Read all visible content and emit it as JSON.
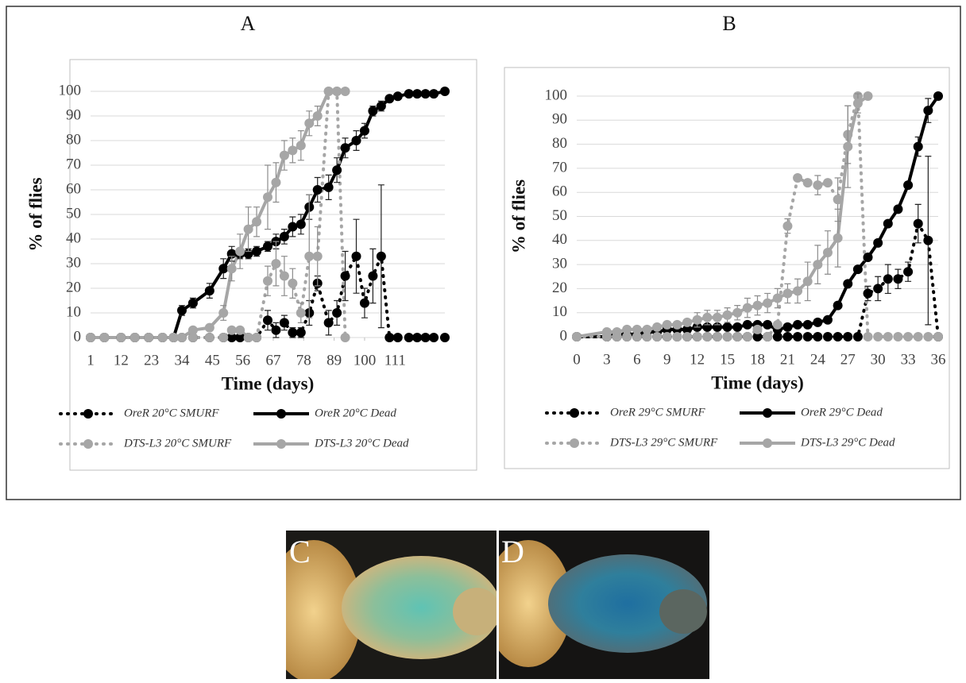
{
  "chart_data": [
    {
      "type": "line",
      "title": "A",
      "x_label": "Time (days)",
      "y_label": "% of flies",
      "x": [
        1,
        6,
        12,
        17,
        22,
        27,
        31,
        34,
        38,
        44,
        49,
        52,
        55,
        58,
        61,
        65,
        68,
        71,
        74,
        77,
        80,
        83,
        87,
        90,
        93,
        97,
        100,
        103,
        106,
        109,
        112,
        116,
        119,
        122,
        125,
        129
      ],
      "xlim": [
        1,
        129
      ],
      "xticks": [
        1,
        12,
        23,
        34,
        45,
        56,
        67,
        78,
        89,
        100,
        111
      ],
      "ylim": [
        0,
        100
      ],
      "yticks": [
        0,
        10,
        20,
        30,
        40,
        50,
        60,
        70,
        80,
        90,
        100
      ],
      "grid": true,
      "series": [
        {
          "name": "OreR 20°C SMURF",
          "color": "#000000",
          "dash": "dotted",
          "values": [
            0,
            0,
            0,
            0,
            0,
            0,
            0,
            0,
            0,
            0,
            0,
            0,
            0,
            0,
            0,
            7,
            3,
            6,
            2,
            2,
            10,
            22,
            6,
            10,
            25,
            33,
            14,
            25,
            33,
            0,
            0,
            0,
            0,
            0,
            0,
            0
          ],
          "errors": [
            null,
            null,
            null,
            null,
            null,
            null,
            null,
            null,
            null,
            null,
            null,
            null,
            null,
            null,
            null,
            4,
            3,
            3,
            2,
            2,
            5,
            3,
            5,
            5,
            10,
            15,
            6,
            11,
            29,
            null,
            null,
            null,
            null,
            null,
            null,
            null
          ]
        },
        {
          "name": "OreR 20°C Dead",
          "color": "#000000",
          "dash": "solid",
          "values": [
            0,
            0,
            0,
            0,
            0,
            0,
            0,
            11,
            14,
            19,
            28,
            34,
            34,
            34,
            35,
            37,
            39,
            41,
            45,
            46,
            53,
            60,
            61,
            68,
            77,
            80,
            84,
            92,
            94,
            97,
            98,
            99,
            99,
            99,
            99,
            100
          ],
          "errors": [
            null,
            null,
            null,
            null,
            null,
            null,
            null,
            2,
            2,
            3,
            4,
            3,
            2,
            2,
            2,
            2,
            3,
            3,
            4,
            4,
            5,
            5,
            5,
            5,
            4,
            4,
            3,
            2,
            2,
            null,
            null,
            null,
            null,
            null,
            null,
            null
          ]
        },
        {
          "name": "DTS-L3 20°C SMURF",
          "color": "#a6a6a6",
          "dash": "dotted",
          "values": [
            0,
            0,
            0,
            0,
            0,
            0,
            0,
            0,
            0,
            0,
            0,
            3,
            3,
            0,
            0,
            23,
            30,
            25,
            22,
            10,
            33,
            33,
            100,
            100,
            0,
            null,
            null,
            null,
            null,
            null,
            null,
            null,
            null,
            null,
            null,
            null
          ],
          "errors": [
            null,
            null,
            null,
            null,
            null,
            null,
            null,
            null,
            null,
            null,
            null,
            null,
            null,
            null,
            null,
            6,
            9,
            8,
            6,
            4,
            25,
            12,
            null,
            null,
            null,
            null,
            null,
            null,
            null,
            null,
            null,
            null,
            null,
            null,
            null,
            null
          ]
        },
        {
          "name": "DTS-L3 20°C Dead",
          "color": "#a6a6a6",
          "dash": "solid",
          "values": [
            0,
            0,
            0,
            0,
            0,
            0,
            0,
            0,
            3,
            4,
            10,
            28,
            35,
            44,
            47,
            57,
            63,
            74,
            76,
            78,
            87,
            90,
            100,
            100,
            100,
            null,
            null,
            null,
            null,
            null,
            null,
            null,
            null,
            null,
            null,
            null
          ],
          "errors": [
            null,
            null,
            null,
            null,
            null,
            null,
            null,
            null,
            null,
            null,
            3,
            5,
            7,
            9,
            6,
            13,
            8,
            6,
            5,
            6,
            5,
            4,
            null,
            null,
            null,
            null,
            null,
            null,
            null,
            null,
            null,
            null,
            null,
            null,
            null,
            null
          ]
        }
      ]
    },
    {
      "type": "line",
      "title": "B",
      "x_label": "Time (days)",
      "y_label": "% of flies",
      "x": [
        0,
        3,
        4,
        5,
        6,
        7,
        8,
        9,
        10,
        11,
        12,
        13,
        14,
        15,
        16,
        17,
        18,
        19,
        20,
        21,
        22,
        23,
        24,
        25,
        26,
        27,
        28,
        29,
        30,
        31,
        32,
        33,
        34,
        35,
        36
      ],
      "xlim": [
        0,
        36
      ],
      "xticks": [
        0,
        3,
        6,
        9,
        12,
        15,
        18,
        21,
        24,
        27,
        30,
        33,
        36
      ],
      "ylim": [
        0,
        100
      ],
      "yticks": [
        0,
        10,
        20,
        30,
        40,
        50,
        60,
        70,
        80,
        90,
        100
      ],
      "grid": true,
      "series": [
        {
          "name": "OreR 29°C SMURF",
          "color": "#000000",
          "dash": "dotted",
          "values": [
            0,
            0,
            0,
            0,
            0,
            0,
            0,
            0,
            0,
            0,
            0,
            0,
            0,
            0,
            0,
            0,
            0,
            0,
            0,
            0,
            0,
            0,
            0,
            0,
            0,
            0,
            0,
            18,
            20,
            24,
            24,
            27,
            47,
            40,
            0
          ],
          "errors": [
            null,
            null,
            null,
            null,
            null,
            null,
            null,
            null,
            null,
            null,
            null,
            null,
            null,
            null,
            null,
            null,
            null,
            null,
            null,
            null,
            null,
            null,
            null,
            null,
            null,
            null,
            null,
            3,
            5,
            6,
            4,
            4,
            8,
            35,
            null
          ]
        },
        {
          "name": "OreR 29°C Dead",
          "color": "#000000",
          "dash": "solid",
          "values": [
            0,
            0,
            1,
            1,
            1,
            2,
            2,
            3,
            3,
            3,
            4,
            4,
            4,
            4,
            4,
            5,
            5,
            5,
            3,
            4,
            5,
            5,
            6,
            7,
            13,
            22,
            28,
            33,
            39,
            47,
            53,
            63,
            79,
            94,
            100
          ],
          "errors": [
            null,
            null,
            null,
            null,
            null,
            null,
            null,
            null,
            null,
            null,
            null,
            null,
            null,
            null,
            null,
            null,
            null,
            null,
            null,
            null,
            null,
            null,
            null,
            null,
            null,
            null,
            null,
            null,
            null,
            null,
            null,
            null,
            4,
            5,
            null
          ]
        },
        {
          "name": "DTS-L3 29°C SMURF",
          "color": "#a6a6a6",
          "dash": "dotted",
          "values": [
            0,
            0,
            0,
            0,
            0,
            0,
            0,
            0,
            0,
            0,
            0,
            0,
            0,
            0,
            0,
            0,
            3,
            0,
            5,
            46,
            66,
            64,
            63,
            64,
            57,
            84,
            100,
            0,
            0,
            0,
            0,
            0,
            0,
            0,
            0
          ],
          "errors": [
            null,
            null,
            null,
            null,
            null,
            null,
            null,
            null,
            null,
            null,
            null,
            null,
            null,
            null,
            null,
            null,
            null,
            null,
            null,
            3,
            1,
            null,
            4,
            null,
            9,
            12,
            null,
            null,
            null,
            null,
            null,
            null,
            null,
            null,
            null
          ]
        },
        {
          "name": "DTS-L3 29°C Dead",
          "color": "#a6a6a6",
          "dash": "solid",
          "values": [
            0,
            2,
            2,
            3,
            3,
            3,
            4,
            5,
            5,
            6,
            7,
            8,
            8,
            9,
            10,
            12,
            13,
            14,
            16,
            18,
            19,
            23,
            30,
            35,
            41,
            79,
            97,
            100,
            null,
            null,
            null,
            null,
            null,
            null,
            null
          ],
          "errors": [
            null,
            null,
            null,
            null,
            null,
            null,
            null,
            null,
            null,
            null,
            3,
            3,
            3,
            3,
            3,
            4,
            4,
            4,
            4,
            4,
            5,
            8,
            8,
            9,
            12,
            17,
            4,
            null,
            null,
            null,
            null,
            null,
            null,
            null,
            null
          ]
        }
      ]
    }
  ],
  "photos": [
    {
      "label": "C"
    },
    {
      "label": "D"
    }
  ]
}
